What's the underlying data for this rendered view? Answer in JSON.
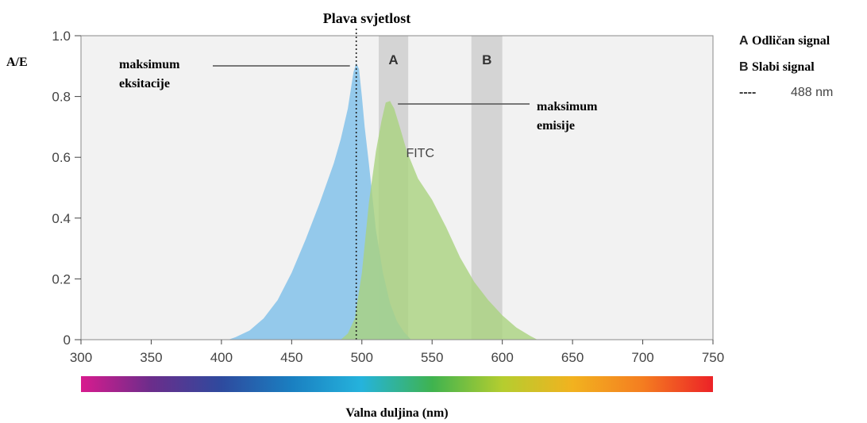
{
  "chart_data": {
    "type": "area",
    "title": "Plava svjetlost",
    "xlabel": "Valna duljina (nm)",
    "ylabel": "A/E",
    "xlim": [
      300,
      750
    ],
    "ylim": [
      0,
      1.0
    ],
    "xticks": [
      300,
      350,
      400,
      450,
      500,
      550,
      600,
      650,
      700,
      750
    ],
    "yticks": [
      0,
      0.2,
      0.4,
      0.6,
      0.8,
      1.0
    ],
    "ytick_labels": [
      "0",
      "0.2",
      "0.4",
      "0.6",
      "0.8",
      "1.0"
    ],
    "grid": false,
    "series": [
      {
        "name": "",
        "color": "#8ec6ea",
        "points": [
          [
            405,
            0
          ],
          [
            410,
            0.008
          ],
          [
            420,
            0.03
          ],
          [
            430,
            0.07
          ],
          [
            440,
            0.13
          ],
          [
            450,
            0.22
          ],
          [
            460,
            0.33
          ],
          [
            470,
            0.45
          ],
          [
            480,
            0.58
          ],
          [
            485,
            0.66
          ],
          [
            490,
            0.76
          ],
          [
            494,
            0.88
          ],
          [
            496,
            0.91
          ],
          [
            498,
            0.89
          ],
          [
            500,
            0.8
          ],
          [
            502,
            0.7
          ],
          [
            505,
            0.58
          ],
          [
            508,
            0.45
          ],
          [
            510,
            0.36
          ],
          [
            515,
            0.22
          ],
          [
            520,
            0.12
          ],
          [
            525,
            0.06
          ],
          [
            530,
            0.025
          ],
          [
            535,
            0
          ]
        ]
      },
      {
        "name": "FITC",
        "color": "#a9d27e",
        "points": [
          [
            485,
            0
          ],
          [
            490,
            0.02
          ],
          [
            495,
            0.07
          ],
          [
            500,
            0.22
          ],
          [
            505,
            0.45
          ],
          [
            510,
            0.62
          ],
          [
            514,
            0.72
          ],
          [
            517,
            0.78
          ],
          [
            520,
            0.785
          ],
          [
            523,
            0.76
          ],
          [
            527,
            0.7
          ],
          [
            532,
            0.62
          ],
          [
            540,
            0.53
          ],
          [
            550,
            0.46
          ],
          [
            560,
            0.37
          ],
          [
            570,
            0.27
          ],
          [
            580,
            0.19
          ],
          [
            590,
            0.13
          ],
          [
            600,
            0.08
          ],
          [
            610,
            0.04
          ],
          [
            620,
            0.012
          ],
          [
            625,
            0
          ]
        ]
      }
    ],
    "bands": [
      {
        "label": "A",
        "from": 512,
        "to": 533
      },
      {
        "label": "B",
        "from": 578,
        "to": 600
      }
    ],
    "reference_line": {
      "x": 496,
      "style": "dotted"
    },
    "annotations": [
      {
        "lines": [
          "maksimum",
          "eksitacije"
        ],
        "points_to": [
          496,
          0.91
        ]
      },
      {
        "lines": [
          "maksimum",
          "emisije"
        ],
        "points_to": [
          520,
          0.785
        ]
      },
      {
        "text": "FITC",
        "at": [
          536,
          0.58
        ]
      }
    ],
    "legend": {
      "placement": "right",
      "items": [
        {
          "marker": "A",
          "text": "Odličan signal"
        },
        {
          "marker": "B",
          "text": "Slabi signal"
        },
        {
          "marker": "----",
          "text": "488 nm"
        }
      ]
    },
    "spectrum_bar": {
      "colors": [
        "#d81b8e",
        "#6b2d8b",
        "#2e4a9e",
        "#1a7fc1",
        "#25b3dc",
        "#3fb34f",
        "#b5cd2f",
        "#f2b21f",
        "#f47d20",
        "#ec2227"
      ]
    }
  }
}
